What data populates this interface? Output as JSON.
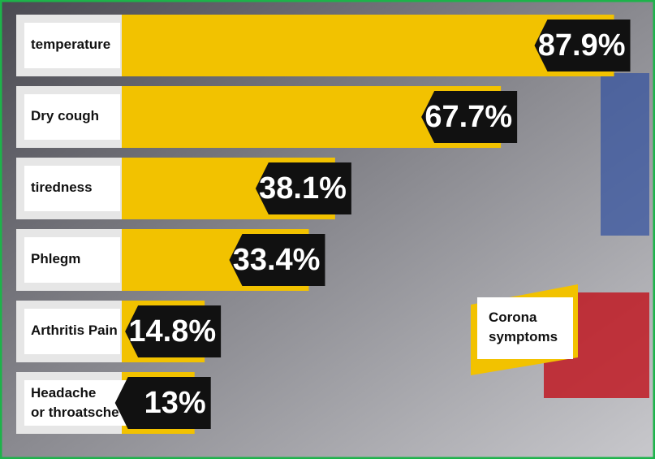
{
  "chart_data": {
    "type": "bar",
    "orientation": "horizontal",
    "title": "Corona symptoms",
    "categories": [
      "temperature",
      "Dry cough",
      "tiredness",
      "Phlegm",
      "Arthritis Pain",
      "Headache or throatsche"
    ],
    "values": [
      87.9,
      67.7,
      38.1,
      33.4,
      14.8,
      13
    ],
    "value_labels": [
      "87.9%",
      "67.7%",
      "38.1%",
      "33.4%",
      "14.8%",
      "13%"
    ],
    "color": "#f2c200"
  }
}
